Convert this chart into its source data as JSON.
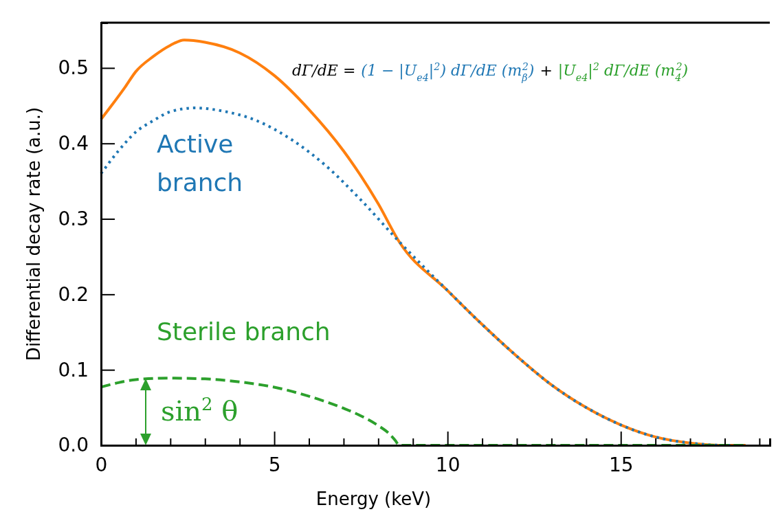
{
  "chart_data": {
    "type": "line",
    "xlabel": "Energy (keV)",
    "ylabel": "Differential decay rate (a.u.)",
    "xlim": [
      0,
      19.3
    ],
    "ylim": [
      0,
      0.56
    ],
    "xticks": [
      0,
      {
        "value": 1,
        "label": null
      },
      {
        "value": 2,
        "label": null
      },
      {
        "value": 3,
        "label": null
      },
      {
        "value": 4,
        "label": null
      },
      5,
      {
        "value": 6,
        "label": null
      },
      {
        "value": 7,
        "label": null
      },
      {
        "value": 8,
        "label": null
      },
      {
        "value": 9,
        "label": null
      },
      10,
      {
        "value": 11,
        "label": null
      },
      {
        "value": 12,
        "label": null
      },
      {
        "value": 13,
        "label": null
      },
      {
        "value": 14,
        "label": null
      },
      15,
      {
        "value": 16,
        "label": null
      },
      {
        "value": 17,
        "label": null
      },
      {
        "value": 18,
        "label": null
      },
      {
        "value": 19,
        "label": null
      }
    ],
    "yticks": [
      {
        "value": 0,
        "label": "0.0"
      },
      0.1,
      0.2,
      0.3,
      0.4,
      0.5
    ],
    "grid": false,
    "legend": false,
    "marker": "none",
    "series": [
      {
        "color": "#ff7f0e",
        "line_style": "solid",
        "x": [
          0,
          0.3,
          0.7,
          1,
          1.5,
          2,
          2.4,
          3,
          4,
          5,
          6,
          7,
          8,
          8.6,
          10,
          11,
          12,
          13,
          14,
          15,
          16,
          17,
          18,
          18.6
        ],
        "values": [
          0.432,
          0.45,
          0.475,
          0.495,
          0.515,
          0.53,
          0.537,
          0.534,
          0.52,
          0.49,
          0.445,
          0.39,
          0.32,
          0.27,
          0.205,
          0.16,
          0.118,
          0.08,
          0.05,
          0.027,
          0.011,
          0.003,
          0,
          0
        ]
      },
      {
        "color": "#1f77b4",
        "line_style": "dotted",
        "x": [
          0,
          0.5,
          1,
          1.5,
          2,
          2.7,
          3.5,
          4.5,
          5.5,
          6.5,
          7.5,
          8.6,
          10,
          11,
          12,
          13,
          14,
          15,
          16,
          17,
          18,
          18.6
        ],
        "values": [
          0.36,
          0.39,
          0.415,
          0.43,
          0.442,
          0.447,
          0.443,
          0.43,
          0.405,
          0.37,
          0.325,
          0.27,
          0.205,
          0.16,
          0.118,
          0.08,
          0.05,
          0.027,
          0.011,
          0.003,
          0,
          0
        ]
      },
      {
        "color": "#2ca02c",
        "line_style": "dashed",
        "x": [
          0,
          0.5,
          1,
          2,
          3,
          4,
          5,
          6,
          7,
          7.5,
          8,
          8.3,
          8.5,
          8.6,
          18.6
        ],
        "values": [
          0.077,
          0.083,
          0.087,
          0.089,
          0.088,
          0.084,
          0.077,
          0.065,
          0.049,
          0.039,
          0.026,
          0.016,
          0.006,
          0,
          0
        ]
      }
    ],
    "annotations": [
      "dΓ/dE =",
      "(1 − |U$_{e4}$|$^{2}$) dΓ/dE (m$_{β}$$^{2}$)",
      "+",
      "|U$_{e4}$|$^{2}$ dΓ/dE (m$_{4}$$^{2}$)",
      "Active branch",
      "Sterile branch",
      "sin$^{2}$ θ"
    ]
  }
}
